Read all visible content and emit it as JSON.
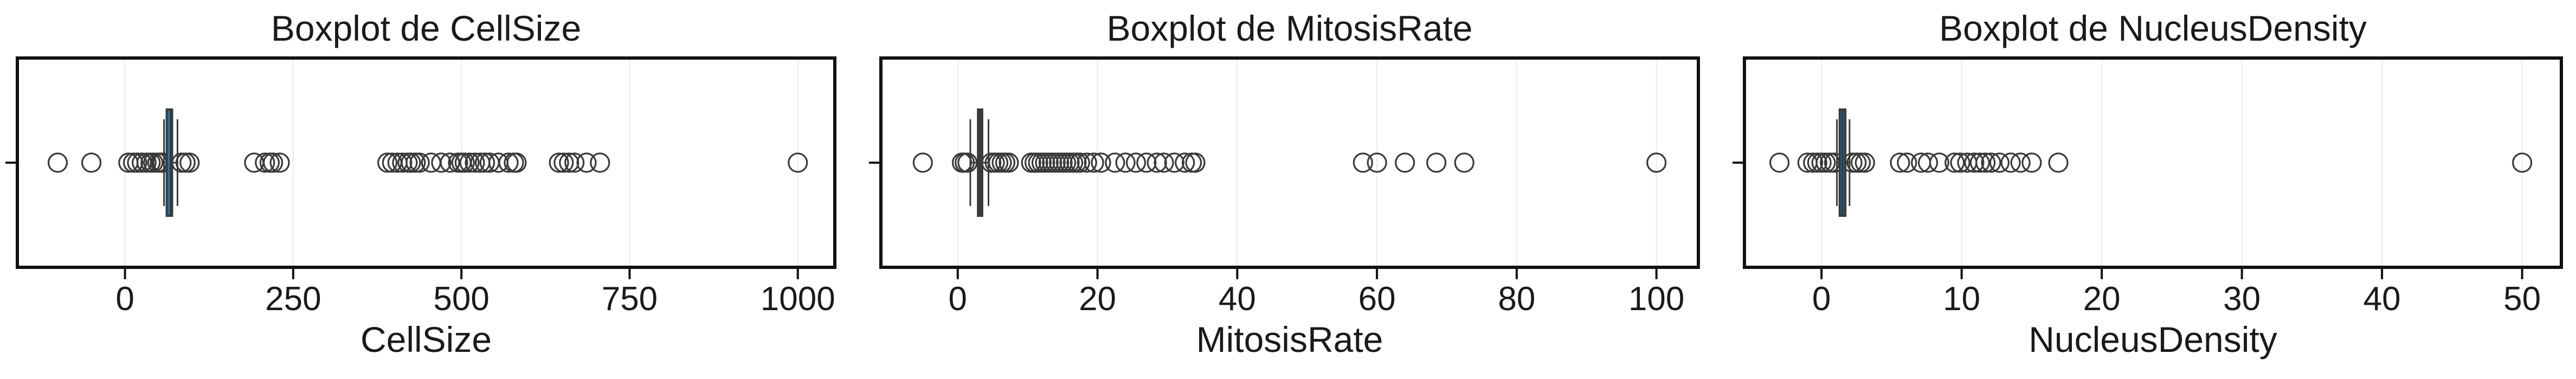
{
  "chart_data": [
    {
      "type": "boxplot",
      "title": "Boxplot de CellSize",
      "xlabel": "CellSize",
      "xlim": [
        -160,
        1055
      ],
      "xticks": [
        0,
        250,
        500,
        750,
        1000
      ],
      "xtick_labels": [
        "0",
        "250",
        "500",
        "750",
        "1000"
      ],
      "grid": "vertical",
      "box": {
        "q1": 62,
        "median": 68,
        "q3": 70,
        "whisker_low": 58,
        "whisker_high": 78
      },
      "outliers": [
        -100,
        -50,
        5,
        12,
        18,
        25,
        32,
        38,
        42,
        48,
        52,
        54,
        56,
        84,
        90,
        96,
        192,
        208,
        215,
        220,
        230,
        390,
        397,
        405,
        412,
        420,
        425,
        432,
        438,
        455,
        470,
        483,
        495,
        500,
        505,
        512,
        520,
        528,
        535,
        542,
        555,
        570,
        578,
        582,
        645,
        652,
        660,
        668,
        686,
        706,
        1000
      ]
    },
    {
      "type": "boxplot",
      "title": "Boxplot de MitosisRate",
      "xlabel": "MitosisRate",
      "xlim": [
        -11,
        106
      ],
      "xticks": [
        0,
        20,
        40,
        60,
        80,
        100
      ],
      "xtick_labels": [
        "0",
        "20",
        "40",
        "60",
        "80",
        "100"
      ],
      "grid": "vertical",
      "box": {
        "q1": 2.9,
        "median": 3.2,
        "q3": 3.5,
        "whisker_low": 1.8,
        "whisker_high": 4.4
      },
      "outliers": [
        -5,
        0.6,
        1.0,
        1.4,
        4.8,
        5.3,
        5.8,
        6.3,
        6.8,
        7.3,
        10.5,
        11.0,
        11.5,
        12.0,
        12.5,
        13.0,
        13.5,
        14.0,
        14.5,
        15.0,
        15.5,
        16.0,
        16.5,
        17.0,
        17.5,
        18.5,
        19.5,
        20.5,
        22.5,
        24.0,
        25.5,
        27.0,
        28.5,
        29.5,
        31.0,
        32.5,
        33.5,
        34.0,
        58,
        60,
        64,
        68.5,
        72.5,
        100
      ]
    },
    {
      "type": "boxplot",
      "title": "Boxplot de NucleusDensity",
      "xlabel": "NucleusDensity",
      "xlim": [
        -5.5,
        52.8
      ],
      "xticks": [
        0,
        10,
        20,
        30,
        40,
        50
      ],
      "xtick_labels": [
        "0",
        "10",
        "20",
        "30",
        "40",
        "50"
      ],
      "grid": "vertical",
      "box": {
        "q1": 1.3,
        "median": 1.5,
        "q3": 1.7,
        "whisker_low": 1.1,
        "whisker_high": 2.0
      },
      "outliers": [
        -3,
        -1,
        -0.6,
        -0.3,
        0.0,
        0.3,
        0.6,
        0.9,
        2.2,
        2.5,
        2.8,
        3.1,
        5.6,
        6.1,
        7.1,
        7.6,
        8.4,
        9.5,
        9.9,
        10.4,
        10.9,
        11.3,
        11.7,
        12.1,
        12.7,
        13.5,
        14.2,
        15.0,
        16.9,
        50
      ]
    }
  ]
}
